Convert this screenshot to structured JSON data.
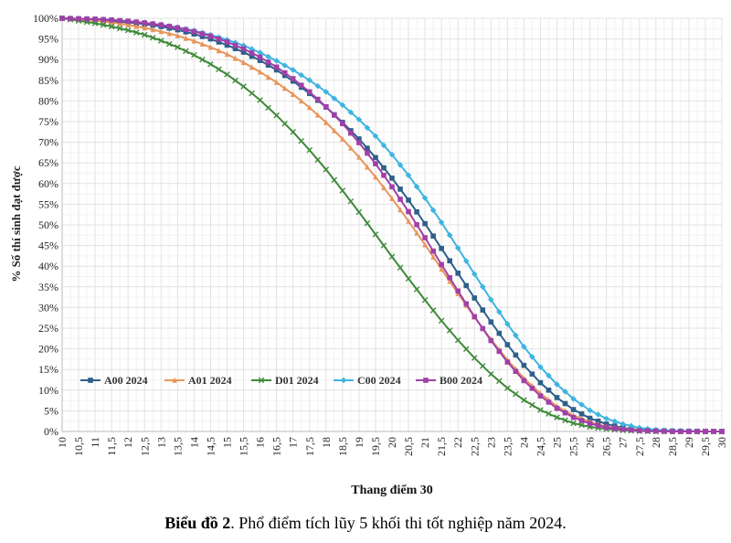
{
  "caption": {
    "label": "Biểu đồ 2",
    "text": ". Phổ điểm tích lũy 5 khối thi tốt nghiệp năm 2024."
  },
  "chart_data": {
    "type": "line",
    "xlabel": "Thang điểm 30",
    "ylabel": "% Số thí sinh đạt được",
    "xlim": [
      10,
      30
    ],
    "ylim": [
      0,
      100
    ],
    "grid": true,
    "legend": "bottom-left",
    "x_ticks": [
      "10",
      "10,5",
      "11",
      "11,5",
      "12",
      "12,5",
      "13",
      "13,5",
      "14",
      "14,5",
      "15",
      "15,5",
      "16",
      "16,5",
      "17",
      "17,5",
      "18",
      "18,5",
      "19",
      "19,5",
      "20",
      "20,5",
      "21",
      "21,5",
      "22",
      "22,5",
      "23",
      "23,5",
      "24",
      "24,5",
      "25",
      "25,5",
      "26",
      "26,5",
      "27",
      "27,5",
      "28",
      "28,5",
      "29",
      "29,5",
      "30"
    ],
    "y_ticks": [
      "0%",
      "5%",
      "10%",
      "15%",
      "20%",
      "25%",
      "30%",
      "35%",
      "40%",
      "45%",
      "50%",
      "55%",
      "60%",
      "65%",
      "70%",
      "75%",
      "80%",
      "85%",
      "90%",
      "95%",
      "100%"
    ],
    "x": [
      10,
      10.5,
      11,
      11.5,
      12,
      12.5,
      13,
      13.5,
      14,
      14.5,
      15,
      15.5,
      16,
      16.5,
      17,
      17.5,
      18,
      18.5,
      19,
      19.5,
      20,
      20.5,
      21,
      21.5,
      22,
      22.5,
      23,
      23.5,
      24,
      24.5,
      25,
      25.5,
      26,
      26.5,
      27,
      27.5,
      28,
      28.5,
      29,
      29.5,
      30
    ],
    "series": [
      {
        "name": "A00 2024",
        "color": "#2e5f8a",
        "marker": "square",
        "values": [
          100,
          99.8,
          99.6,
          99.3,
          99,
          98.6,
          98,
          97.2,
          96.2,
          95,
          93.5,
          91.8,
          89.8,
          87.5,
          84.8,
          81.8,
          78.5,
          74.8,
          70.8,
          66.3,
          61.3,
          56,
          50.3,
          44.3,
          38.3,
          32.3,
          26.5,
          21,
          16,
          11.8,
          8.2,
          5.3,
          3.2,
          1.8,
          0.9,
          0.4,
          0.2,
          0.1,
          0,
          0,
          0
        ]
      },
      {
        "name": "A01 2024",
        "color": "#e8955a",
        "marker": "triangle",
        "values": [
          100,
          99.7,
          99.4,
          99,
          98.4,
          97.7,
          96.8,
          95.8,
          94.5,
          93,
          91.3,
          89.3,
          87,
          84.5,
          81.6,
          78.4,
          74.8,
          70.8,
          66.4,
          61.6,
          56.4,
          50.9,
          45.2,
          39.3,
          33.4,
          27.7,
          22.3,
          17.3,
          12.9,
          9.2,
          6.1,
          3.9,
          2.3,
          1.2,
          0.6,
          0.3,
          0.1,
          0,
          0,
          0,
          0
        ]
      },
      {
        "name": "D01 2024",
        "color": "#3f8a3a",
        "marker": "x",
        "values": [
          100,
          99.4,
          98.8,
          98,
          97.1,
          96,
          94.6,
          93,
          91.1,
          88.9,
          86.4,
          83.5,
          80.2,
          76.5,
          72.5,
          68.1,
          63.4,
          58.3,
          53.1,
          47.7,
          42.3,
          37,
          31.8,
          26.8,
          22.1,
          17.8,
          13.9,
          10.5,
          7.6,
          5.2,
          3.4,
          2,
          1.1,
          0.6,
          0.3,
          0.1,
          0,
          0,
          0,
          0,
          0
        ]
      },
      {
        "name": "C00 2024",
        "color": "#3fb4e0",
        "marker": "diamond",
        "values": [
          100,
          99.9,
          99.8,
          99.6,
          99.3,
          98.9,
          98.4,
          97.8,
          97,
          96,
          94.8,
          93.4,
          91.7,
          89.7,
          87.5,
          85,
          82.2,
          79,
          75.5,
          71.5,
          67,
          62,
          56.5,
          50.6,
          44.4,
          38.1,
          31.9,
          26,
          20.5,
          15.6,
          11.4,
          7.9,
          5.1,
          3.1,
          1.8,
          0.9,
          0.4,
          0.2,
          0.1,
          0,
          0
        ]
      },
      {
        "name": "B00 2024",
        "color": "#a040a8",
        "marker": "square",
        "values": [
          100,
          99.9,
          99.8,
          99.6,
          99.3,
          98.9,
          98.4,
          97.7,
          96.8,
          95.7,
          94.3,
          92.6,
          90.6,
          88.2,
          85.4,
          82.2,
          78.6,
          74.5,
          69.9,
          64.8,
          59.2,
          53.2,
          46.9,
          40.4,
          34,
          27.8,
          22,
          16.8,
          12.3,
          8.6,
          5.6,
          3.4,
          1.9,
          1,
          0.5,
          0.2,
          0.1,
          0,
          0,
          0,
          0
        ]
      }
    ]
  }
}
